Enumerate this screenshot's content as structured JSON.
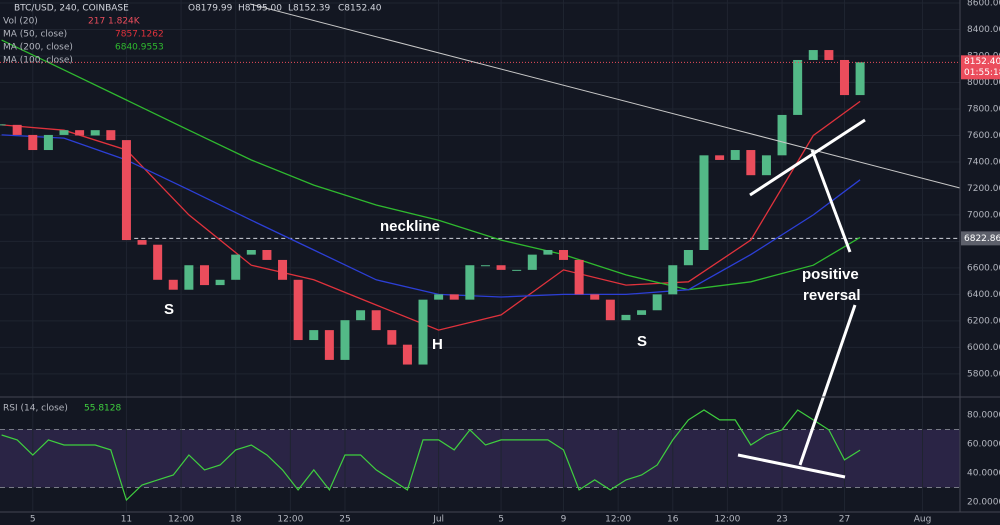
{
  "chart_data": [
    {
      "type": "candlestick",
      "title": "BTC/USD, 240, COINBASE",
      "ohlc": [
        "O8179.99",
        "H8195.00",
        "L8152.39",
        "C8152.40"
      ],
      "volume_legend": {
        "name": "Vol (20)",
        "values": [
          217,
          "1.824K"
        ]
      },
      "up_color": "#53b987",
      "down_color": "#eb4d5c",
      "x": [
        3,
        4,
        5,
        6,
        7,
        8,
        9,
        10,
        11,
        12,
        13,
        14,
        15,
        16,
        17,
        18,
        19,
        20,
        21,
        22,
        23,
        24,
        25,
        26,
        27,
        28,
        29,
        30,
        31,
        32,
        33,
        34,
        35,
        36,
        37,
        38,
        39,
        40,
        41,
        42,
        43,
        44,
        45,
        46,
        47,
        48,
        49,
        50,
        51,
        52,
        53,
        54,
        55,
        56,
        57,
        58
      ],
      "close": [
        7680,
        7604,
        7490,
        7604,
        7640,
        7600,
        7640,
        7565,
        6810,
        6775,
        6510,
        6435,
        6620,
        6470,
        6510,
        6700,
        6735,
        6660,
        6510,
        6055,
        6130,
        5905,
        6205,
        6280,
        6130,
        6020,
        5870,
        6360,
        6400,
        6360,
        6620,
        6620,
        6585,
        6585,
        6700,
        6735,
        6660,
        6400,
        6360,
        6205,
        6245,
        6280,
        6400,
        6620,
        6735,
        7450,
        7415,
        7490,
        7300,
        7450,
        7755,
        8170,
        8245,
        8170,
        7905,
        8152.4
      ],
      "series": [
        {
          "name": "MA (50, close)",
          "last": 7857.1262,
          "color": "#e0323c",
          "x": [
            3,
            7,
            11,
            15,
            19,
            23,
            27,
            31,
            35,
            39,
            43,
            47,
            51,
            55,
            58
          ],
          "values": [
            7680,
            7640,
            7490,
            7000,
            6620,
            6510,
            6320,
            6130,
            6245,
            6585,
            6470,
            6495,
            6810,
            7600,
            7857
          ]
        },
        {
          "name": "MA (200, close)",
          "last": 6840.9553,
          "color": "#2fb92f",
          "x": [
            3,
            7,
            11,
            15,
            19,
            23,
            27,
            31,
            35,
            39,
            43,
            47,
            51,
            55,
            58
          ],
          "values": [
            8320,
            8095,
            7868,
            7640,
            7415,
            7225,
            7075,
            6960,
            6810,
            6700,
            6547,
            6435,
            6495,
            6620,
            6830
          ]
        },
        {
          "name": "MA (100, close)",
          "color": "#2c3fd6",
          "x": [
            3,
            7,
            11,
            15,
            19,
            23,
            27,
            31,
            35,
            39,
            43,
            47,
            51,
            55,
            58
          ],
          "values": [
            7604,
            7580,
            7415,
            7190,
            6960,
            6735,
            6510,
            6400,
            6380,
            6400,
            6400,
            6435,
            6700,
            7000,
            7265
          ]
        }
      ],
      "last_price": {
        "value": 8152.4,
        "label": "8152.40"
      },
      "countdown": "01:55:18",
      "level": 6822.86,
      "annotations": [
        "neckline",
        "S",
        "H",
        "S",
        [
          "positive",
          "reversal"
        ]
      ],
      "xlim": [
        2.9,
        64.4
      ],
      "ylim": [
        5640,
        8623
      ],
      "xticks": [
        {
          "value": 5,
          "label": "5"
        },
        {
          "value": 11,
          "label": "11"
        },
        {
          "value": 14.5,
          "label": "12:00"
        },
        {
          "value": 18,
          "label": "18"
        },
        {
          "value": 21.5,
          "label": "12:00"
        },
        {
          "value": 25,
          "label": "25"
        },
        {
          "value": 31,
          "label": "Jul"
        },
        {
          "value": 35,
          "label": "5"
        },
        {
          "value": 39,
          "label": "9"
        },
        {
          "value": 42.5,
          "label": "12:00"
        },
        {
          "value": 46,
          "label": "16"
        },
        {
          "value": 49.5,
          "label": "12:00"
        },
        {
          "value": 53,
          "label": "23"
        },
        {
          "value": 57,
          "label": "27"
        },
        {
          "value": 62,
          "label": "Aug"
        }
      ],
      "yticks": [
        {
          "value": 5800,
          "label": "5800.00"
        },
        {
          "value": 6000,
          "label": "6000.00"
        },
        {
          "value": 6200,
          "label": "6200.00"
        },
        {
          "value": 6400,
          "label": "6400.00"
        },
        {
          "value": 6600,
          "label": "6600.00"
        },
        {
          "value": 6800,
          "label": "6800.00"
        },
        {
          "value": 7000,
          "label": "7000.00"
        },
        {
          "value": 7200,
          "label": "7200.00"
        },
        {
          "value": 7400,
          "label": "7400.00"
        },
        {
          "value": 7600,
          "label": "7600.00"
        },
        {
          "value": 7800,
          "label": "7800.00"
        },
        {
          "value": 8000,
          "label": "8000.00"
        },
        {
          "value": 8200,
          "label": "8200.00"
        },
        {
          "value": 8400,
          "label": "8400.00"
        },
        {
          "value": 8600,
          "label": "8600.00"
        }
      ],
      "grid": true
    },
    {
      "type": "line",
      "title": "RSI (14, close)",
      "last": 55.8128,
      "color": "#3fcf3f",
      "band": [
        30,
        70
      ],
      "x": [
        3,
        4,
        5,
        6,
        7,
        8,
        9,
        10,
        11,
        12,
        13,
        14,
        15,
        16,
        17,
        18,
        19,
        20,
        21,
        22,
        23,
        24,
        25,
        26,
        27,
        28,
        29,
        30,
        31,
        32,
        33,
        34,
        35,
        36,
        37,
        38,
        39,
        40,
        41,
        42,
        43,
        44,
        45,
        46,
        47,
        48,
        49,
        50,
        51,
        52,
        53,
        54,
        55,
        56,
        57,
        58
      ],
      "values": [
        66.2,
        62.8,
        52.4,
        62.8,
        59.3,
        59.3,
        59.3,
        55.9,
        21.4,
        31.7,
        35.2,
        38.6,
        52.4,
        42.1,
        45.5,
        55.9,
        59.3,
        52.4,
        42.1,
        28.3,
        42.1,
        28.3,
        52.4,
        52.4,
        42.1,
        35.2,
        28.3,
        62.8,
        62.8,
        55.9,
        69.7,
        59.3,
        62.8,
        62.8,
        62.8,
        62.8,
        55.9,
        28.3,
        35.2,
        28.3,
        35.2,
        38.6,
        45.5,
        62.8,
        76.6,
        83.4,
        76.6,
        76.6,
        59.3,
        66.2,
        69.7,
        83.4,
        76.6,
        69.7,
        49.0,
        55.8
      ],
      "ylim": [
        13.1,
        90.3
      ],
      "yticks": [
        {
          "value": 20,
          "label": "20.0000"
        },
        {
          "value": 40,
          "label": "40.0000"
        },
        {
          "value": 60,
          "label": "60.0000"
        },
        {
          "value": 80,
          "label": "80.0000"
        }
      ]
    }
  ]
}
